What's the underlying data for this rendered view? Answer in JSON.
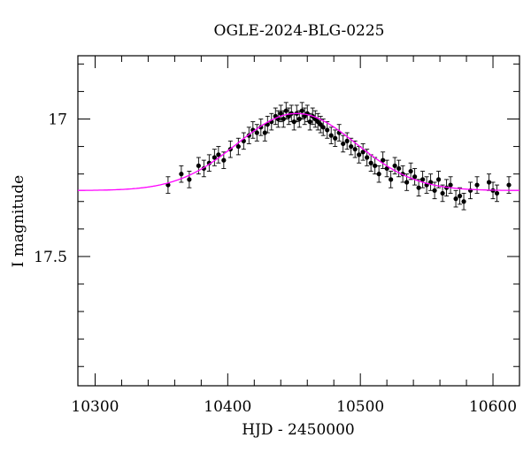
{
  "chart_data": {
    "type": "scatter",
    "title": "OGLE-2024-BLG-0225",
    "xlabel": "HJD - 2450000",
    "ylabel": "I magnitude",
    "xlim": [
      10287,
      10620
    ],
    "ylim": [
      17.97,
      16.77
    ],
    "y_inverted": true,
    "x_ticks": [
      10300,
      10400,
      10500,
      10600
    ],
    "x_tick_labels": [
      "10300",
      "10400",
      "10500",
      "10600"
    ],
    "y_ticks": [
      17,
      17.5
    ],
    "y_tick_labels": [
      "17",
      "17.5"
    ],
    "grid": false,
    "legend": "none",
    "colors": {
      "points": "#000000",
      "model": "#ff00ff"
    },
    "model": {
      "name": "",
      "t0": 10452,
      "baseline_mag": 17.26,
      "peak_mag": 16.98,
      "sigma_days": 45,
      "color": "#ff00ff"
    },
    "series": [
      {
        "name": "",
        "x": [
          10355,
          10365,
          10371,
          10378,
          10382,
          10386,
          10390,
          10393,
          10397,
          10402,
          10408,
          10412,
          10416,
          10419,
          10422,
          10425,
          10428,
          10430,
          10433,
          10436,
          10438,
          10440,
          10442,
          10444,
          10446,
          10448,
          10450,
          10452,
          10454,
          10456,
          10458,
          10460,
          10462,
          10464,
          10466,
          10468,
          10470,
          10472,
          10475,
          10478,
          10481,
          10484,
          10487,
          10490,
          10493,
          10496,
          10499,
          10502,
          10505,
          10508,
          10511,
          10514,
          10517,
          10520,
          10523,
          10526,
          10529,
          10532,
          10535,
          10538,
          10541,
          10544,
          10547,
          10550,
          10553,
          10556,
          10559,
          10562,
          10565,
          10568,
          10572,
          10575,
          10578,
          10583,
          10588,
          10597,
          10600,
          10603,
          10612
        ],
        "y": [
          17.24,
          17.2,
          17.22,
          17.17,
          17.18,
          17.16,
          17.14,
          17.13,
          17.15,
          17.11,
          17.1,
          17.08,
          17.06,
          17.04,
          17.05,
          17.03,
          17.05,
          17.02,
          17.01,
          16.99,
          17.0,
          16.98,
          17.0,
          16.97,
          16.99,
          16.98,
          17.01,
          16.98,
          17.0,
          16.97,
          16.99,
          16.98,
          17.01,
          16.99,
          17.0,
          17.01,
          17.02,
          17.03,
          17.04,
          17.06,
          17.07,
          17.05,
          17.09,
          17.08,
          17.1,
          17.11,
          17.13,
          17.12,
          17.14,
          17.16,
          17.17,
          17.2,
          17.15,
          17.18,
          17.22,
          17.17,
          17.18,
          17.2,
          17.23,
          17.19,
          17.21,
          17.25,
          17.22,
          17.24,
          17.23,
          17.26,
          17.22,
          17.27,
          17.25,
          17.24,
          17.29,
          17.28,
          17.3,
          17.26,
          17.24,
          17.23,
          17.26,
          17.27,
          17.24
        ],
        "yerr": 0.03
      }
    ]
  }
}
